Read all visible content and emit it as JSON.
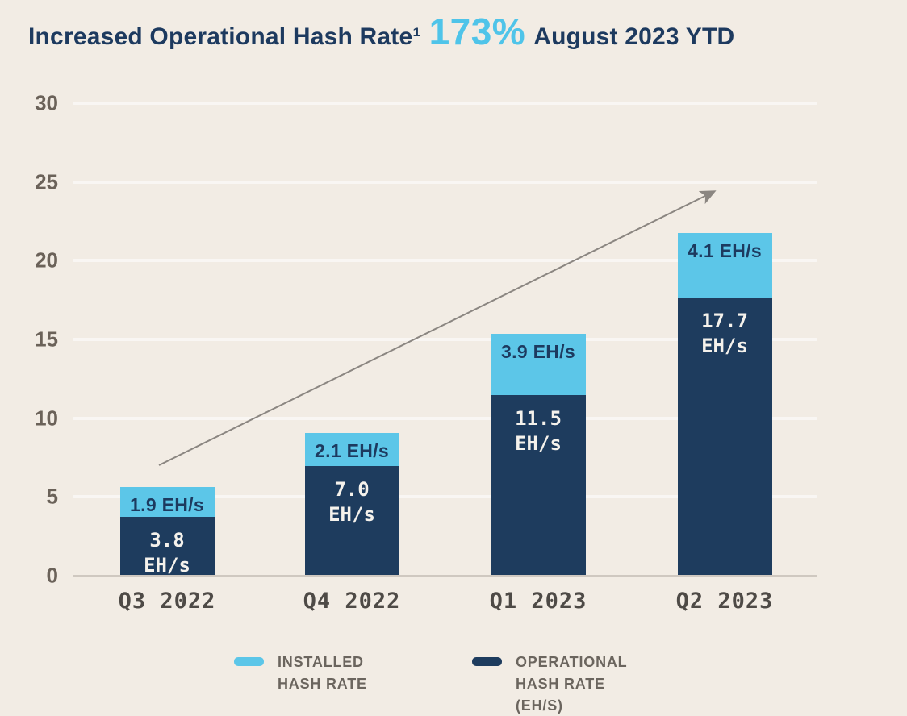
{
  "title": {
    "part1": "Increased Operational Hash Rate¹",
    "highlight": "173%",
    "part2": "August 2023 YTD"
  },
  "colors": {
    "background": "#f2ece4",
    "navy": "#1e3c5e",
    "light_blue": "#5cc6e8",
    "title_navy": "#1d3a5f",
    "highlight_blue": "#4fc4e9",
    "axis_text": "#6b6259",
    "tick_text": "#4e4a46",
    "legend_text": "#6b655e",
    "arrow": "#8b8681",
    "baseline": "#cfc8c0"
  },
  "y_axis": {
    "ticks": [
      30,
      25,
      20,
      15,
      10,
      5,
      0
    ]
  },
  "chart_data": {
    "type": "bar",
    "stacked": true,
    "title": "Increased Operational Hash Rate 173% August 2023 YTD",
    "categories": [
      "Q3 2022",
      "Q4 2022",
      "Q1 2023",
      "Q2 2023"
    ],
    "series": [
      {
        "name": "OPERATIONAL HASH RATE (EH/S)",
        "color": "#1e3c5e",
        "values": [
          3.8,
          7.0,
          11.5,
          17.7
        ],
        "display_values": [
          "3.8",
          "7.0",
          "11.5",
          "17.7"
        ],
        "unit": "EH/s"
      },
      {
        "name": "INSTALLED HASH RATE",
        "color": "#5cc6e8",
        "values": [
          1.9,
          2.1,
          3.9,
          4.1
        ],
        "display_labels": [
          "1.9 EH/s",
          "2.1 EH/s",
          "3.9 EH/s",
          "4.1 EH/s"
        ]
      }
    ],
    "ylim": [
      0,
      30
    ],
    "grid": true,
    "legend_position": "bottom",
    "trend_arrow": true
  },
  "legend": {
    "items": [
      {
        "lines": [
          "INSTALLED",
          "HASH RATE"
        ],
        "color": "#5cc6e8"
      },
      {
        "lines": [
          "OPERATIONAL",
          "HASH RATE",
          "(EH/S)"
        ],
        "color": "#1e3c5e"
      }
    ]
  }
}
